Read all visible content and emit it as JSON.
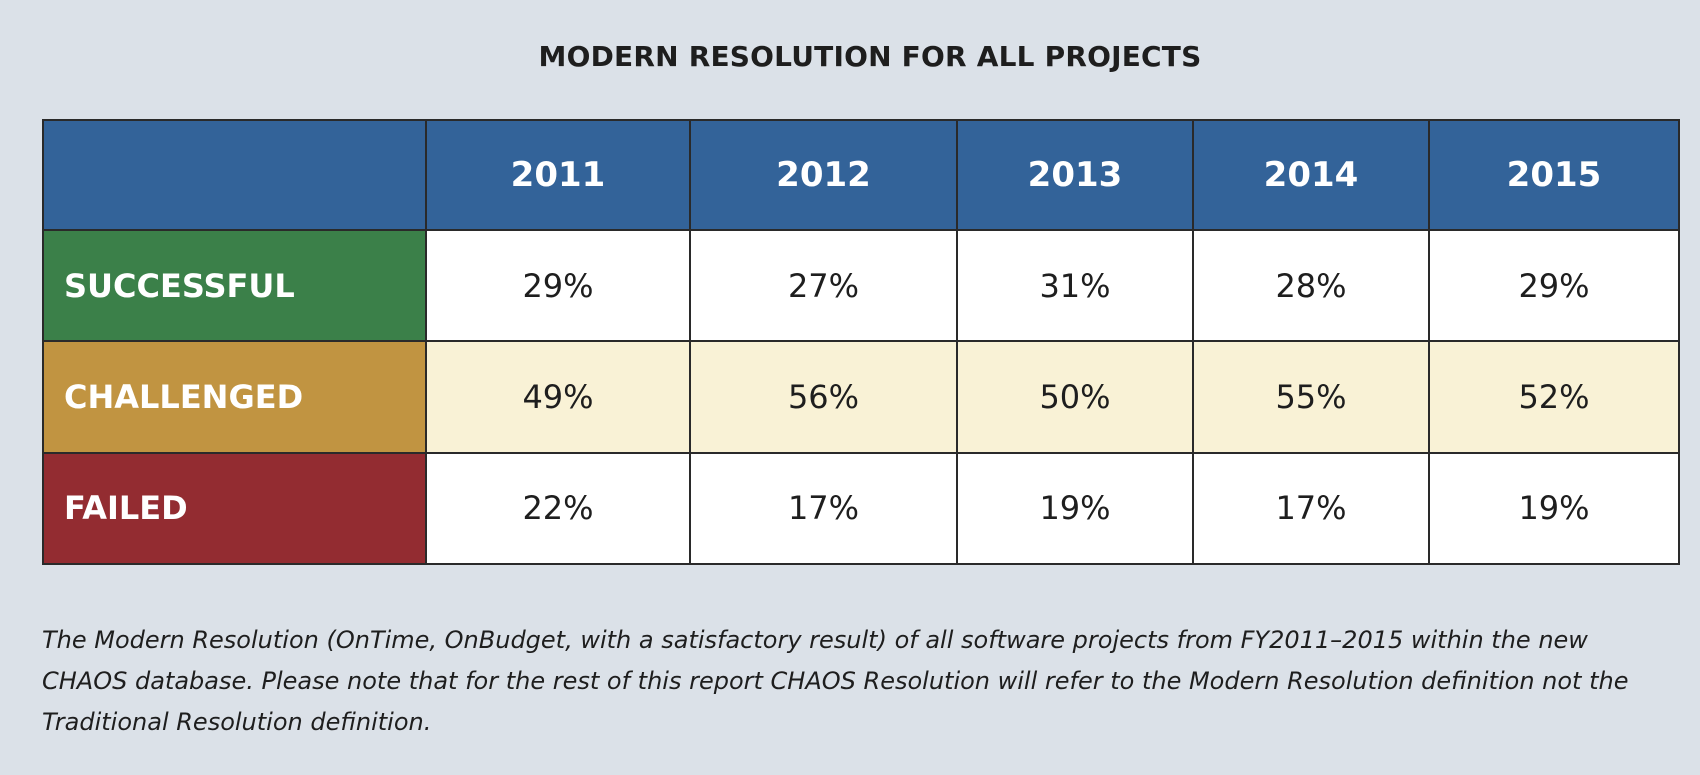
{
  "title": "MODERN RESOLUTION FOR ALL PROJECTS",
  "table": {
    "corner": "",
    "columns": [
      "2011",
      "2012",
      "2013",
      "2014",
      "2015"
    ],
    "rows": [
      {
        "label": "SUCCESSFUL",
        "values": [
          "29%",
          "27%",
          "31%",
          "28%",
          "29%"
        ]
      },
      {
        "label": "CHALLENGED",
        "values": [
          "49%",
          "56%",
          "50%",
          "55%",
          "52%"
        ]
      },
      {
        "label": "FAILED",
        "values": [
          "22%",
          "17%",
          "19%",
          "17%",
          "19%"
        ]
      }
    ]
  },
  "colors": {
    "header": "#336399",
    "successful": "#3b8049",
    "challenged": "#c19441",
    "failed": "#932c31",
    "challenged_row": "#f9f2d6",
    "background": "#dbe1e8"
  },
  "caption": "The Modern Resolution (OnTime, OnBudget, with a satisfactory result) of all software projects from FY2011–2015 within the new CHAOS database. Please note that for the rest of this report CHAOS Resolution will refer to the Modern Resolution definition not the Traditional Resolution definition."
}
